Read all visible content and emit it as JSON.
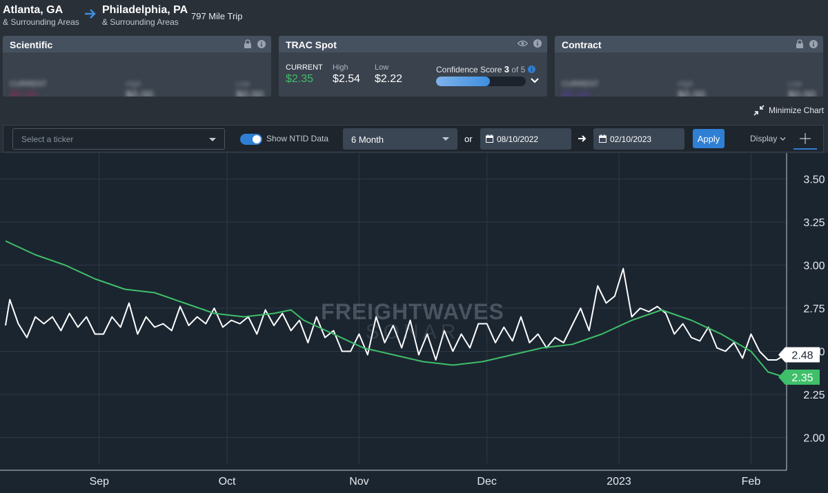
{
  "route": {
    "origin": {
      "name": "Atlanta, GA",
      "sub": "& Surrounding Areas"
    },
    "destination": {
      "name": "Philadelphia, PA",
      "sub": "& Surrounding Areas"
    },
    "distance": "797 Mile Trip"
  },
  "cards": {
    "scientific": {
      "title": "Scientific",
      "current_label": "CURRENT",
      "current_value": "$0.00",
      "high_label": "High",
      "high_value": "$0.00",
      "low_label": "Low",
      "low_value": "$0.00",
      "current_color": "#c0245f"
    },
    "trac": {
      "title": "TRAC Spot",
      "current_label": "CURRENT",
      "current_value": "$2.35",
      "high_label": "High",
      "high_value": "$2.54",
      "low_label": "Low",
      "low_value": "$2.22",
      "confidence_label": "Confidence Score",
      "confidence_score": "3",
      "confidence_of": "of 5",
      "confidence_fraction": 0.6
    },
    "contract": {
      "title": "Contract",
      "current_label": "CURRENT",
      "current_value": "$0.00",
      "high_label": "High",
      "high_value": "$0.00",
      "low_label": "Low",
      "low_value": "$0.00",
      "current_color": "#6a3cc8"
    }
  },
  "minimize_label": "Minimize Chart",
  "toolbar": {
    "ticker_placeholder": "Select a ticker",
    "toggle_label": "Show NTID Data",
    "period": "6 Month",
    "or_label": "or",
    "start_date": "08/10/2022",
    "end_date": "02/10/2023",
    "apply_label": "Apply",
    "display_label": "Display"
  },
  "watermark": {
    "line1": "FREIGHTWAVES",
    "line2": "SONAR"
  },
  "chart_data": {
    "type": "line",
    "x_range": [
      "2022-08-10",
      "2023-02-10"
    ],
    "ylim": [
      1.85,
      3.65
    ],
    "yticks": [
      "2.00",
      "2.25",
      "2.50",
      "2.75",
      "3.00",
      "3.25",
      "3.50"
    ],
    "xticks": [
      "Sep",
      "Oct",
      "Nov",
      "Dec",
      "2023",
      "Feb"
    ],
    "series": [
      {
        "color": "#ffffff",
        "last_label": "2.48",
        "points": [
          [
            "2022-08-10",
            2.65
          ],
          [
            "2022-08-11",
            2.8
          ],
          [
            "2022-08-13",
            2.66
          ],
          [
            "2022-08-15",
            2.58
          ],
          [
            "2022-08-17",
            2.7
          ],
          [
            "2022-08-19",
            2.66
          ],
          [
            "2022-08-21",
            2.7
          ],
          [
            "2022-08-23",
            2.62
          ],
          [
            "2022-08-25",
            2.72
          ],
          [
            "2022-08-27",
            2.64
          ],
          [
            "2022-08-29",
            2.7
          ],
          [
            "2022-08-31",
            2.6
          ],
          [
            "2022-09-02",
            2.6
          ],
          [
            "2022-09-04",
            2.7
          ],
          [
            "2022-09-06",
            2.64
          ],
          [
            "2022-09-08",
            2.78
          ],
          [
            "2022-09-10",
            2.6
          ],
          [
            "2022-09-12",
            2.7
          ],
          [
            "2022-09-14",
            2.64
          ],
          [
            "2022-09-16",
            2.66
          ],
          [
            "2022-09-18",
            2.62
          ],
          [
            "2022-09-20",
            2.76
          ],
          [
            "2022-09-22",
            2.65
          ],
          [
            "2022-09-24",
            2.7
          ],
          [
            "2022-09-26",
            2.66
          ],
          [
            "2022-09-28",
            2.75
          ],
          [
            "2022-09-30",
            2.64
          ],
          [
            "2022-10-02",
            2.68
          ],
          [
            "2022-10-04",
            2.66
          ],
          [
            "2022-10-06",
            2.7
          ],
          [
            "2022-10-08",
            2.6
          ],
          [
            "2022-10-10",
            2.74
          ],
          [
            "2022-10-12",
            2.65
          ],
          [
            "2022-10-14",
            2.72
          ],
          [
            "2022-10-16",
            2.62
          ],
          [
            "2022-10-18",
            2.68
          ],
          [
            "2022-10-20",
            2.55
          ],
          [
            "2022-10-22",
            2.7
          ],
          [
            "2022-10-24",
            2.58
          ],
          [
            "2022-10-26",
            2.62
          ],
          [
            "2022-10-28",
            2.5
          ],
          [
            "2022-10-30",
            2.5
          ],
          [
            "2022-11-01",
            2.6
          ],
          [
            "2022-11-03",
            2.48
          ],
          [
            "2022-11-05",
            2.7
          ],
          [
            "2022-11-07",
            2.55
          ],
          [
            "2022-11-09",
            2.65
          ],
          [
            "2022-11-11",
            2.52
          ],
          [
            "2022-11-13",
            2.68
          ],
          [
            "2022-11-15",
            2.48
          ],
          [
            "2022-11-17",
            2.6
          ],
          [
            "2022-11-19",
            2.45
          ],
          [
            "2022-11-21",
            2.62
          ],
          [
            "2022-11-23",
            2.5
          ],
          [
            "2022-11-25",
            2.6
          ],
          [
            "2022-11-27",
            2.52
          ],
          [
            "2022-11-29",
            2.66
          ],
          [
            "2022-12-01",
            2.66
          ],
          [
            "2022-12-03",
            2.55
          ],
          [
            "2022-12-05",
            2.64
          ],
          [
            "2022-12-07",
            2.56
          ],
          [
            "2022-12-09",
            2.7
          ],
          [
            "2022-12-11",
            2.55
          ],
          [
            "2022-12-13",
            2.6
          ],
          [
            "2022-12-15",
            2.52
          ],
          [
            "2022-12-17",
            2.58
          ],
          [
            "2022-12-19",
            2.55
          ],
          [
            "2022-12-21",
            2.65
          ],
          [
            "2022-12-23",
            2.75
          ],
          [
            "2022-12-25",
            2.62
          ],
          [
            "2022-12-27",
            2.88
          ],
          [
            "2022-12-29",
            2.78
          ],
          [
            "2022-12-31",
            2.82
          ],
          [
            "2023-01-02",
            2.98
          ],
          [
            "2023-01-04",
            2.7
          ],
          [
            "2023-01-06",
            2.75
          ],
          [
            "2023-01-08",
            2.73
          ],
          [
            "2023-01-10",
            2.76
          ],
          [
            "2023-01-12",
            2.72
          ],
          [
            "2023-01-14",
            2.6
          ],
          [
            "2023-01-16",
            2.66
          ],
          [
            "2023-01-18",
            2.58
          ],
          [
            "2023-01-20",
            2.56
          ],
          [
            "2023-01-22",
            2.64
          ],
          [
            "2023-01-24",
            2.52
          ],
          [
            "2023-01-26",
            2.5
          ],
          [
            "2023-01-28",
            2.55
          ],
          [
            "2023-01-30",
            2.46
          ],
          [
            "2023-02-01",
            2.6
          ],
          [
            "2023-02-03",
            2.5
          ],
          [
            "2023-02-05",
            2.45
          ],
          [
            "2023-02-07",
            2.45
          ],
          [
            "2023-02-09",
            2.48
          ]
        ]
      },
      {
        "color": "#3fbf6a",
        "last_label": "2.35",
        "points": [
          [
            "2022-08-10",
            3.14
          ],
          [
            "2022-08-17",
            3.06
          ],
          [
            "2022-08-24",
            3.0
          ],
          [
            "2022-08-31",
            2.92
          ],
          [
            "2022-09-07",
            2.86
          ],
          [
            "2022-09-14",
            2.84
          ],
          [
            "2022-09-21",
            2.78
          ],
          [
            "2022-09-28",
            2.72
          ],
          [
            "2022-10-05",
            2.7
          ],
          [
            "2022-10-12",
            2.72
          ],
          [
            "2022-10-16",
            2.74
          ],
          [
            "2022-10-19",
            2.68
          ],
          [
            "2022-10-26",
            2.6
          ],
          [
            "2022-11-02",
            2.52
          ],
          [
            "2022-11-09",
            2.48
          ],
          [
            "2022-11-16",
            2.44
          ],
          [
            "2022-11-23",
            2.42
          ],
          [
            "2022-11-30",
            2.44
          ],
          [
            "2022-12-07",
            2.48
          ],
          [
            "2022-12-14",
            2.52
          ],
          [
            "2022-12-21",
            2.54
          ],
          [
            "2022-12-28",
            2.6
          ],
          [
            "2023-01-04",
            2.68
          ],
          [
            "2023-01-11",
            2.74
          ],
          [
            "2023-01-18",
            2.68
          ],
          [
            "2023-01-25",
            2.6
          ],
          [
            "2023-02-01",
            2.5
          ],
          [
            "2023-02-05",
            2.38
          ],
          [
            "2023-02-09",
            2.35
          ]
        ]
      }
    ]
  }
}
